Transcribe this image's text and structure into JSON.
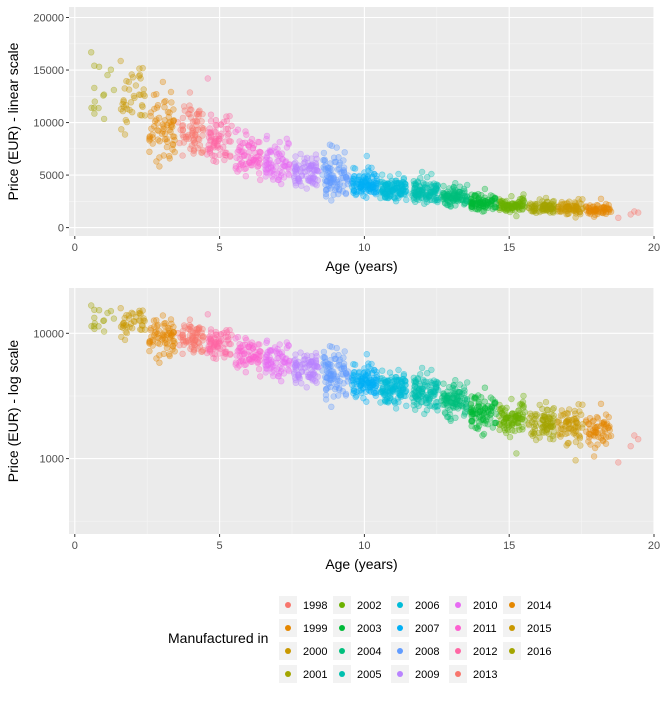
{
  "chart_data": [
    {
      "type": "scatter",
      "xlabel": "Age (years)",
      "ylabel": "Price (EUR) - linear scale",
      "xlim": [
        -0.2,
        20.0
      ],
      "ylim": [
        -800,
        21000
      ],
      "x_ticks": [
        0,
        5,
        10,
        15,
        20
      ],
      "y_ticks": [
        0,
        5000,
        10000,
        15000,
        20000
      ],
      "y_scale": "linear",
      "grid": true
    },
    {
      "type": "scatter",
      "xlabel": "Age (years)",
      "ylabel": "Price (EUR) - log scale",
      "xlim": [
        -0.2,
        20.0
      ],
      "ylim": [
        250,
        23000
      ],
      "x_ticks": [
        0,
        5,
        10,
        15,
        20
      ],
      "y_ticks": [
        1000,
        10000
      ],
      "y_scale": "log",
      "grid": true
    }
  ],
  "series": [
    {
      "name": "1998",
      "color": "#F8766D",
      "age": 19.2,
      "median": 1450,
      "count": 4
    },
    {
      "name": "1999",
      "color": "#E58700",
      "age": 18.1,
      "median": 1700,
      "count": 60
    },
    {
      "name": "2000",
      "color": "#C99800",
      "age": 17.1,
      "median": 1850,
      "count": 70
    },
    {
      "name": "2001",
      "color": "#A3A500",
      "age": 16.1,
      "median": 1950,
      "count": 80
    },
    {
      "name": "2002",
      "color": "#6BB100",
      "age": 15.1,
      "median": 2150,
      "count": 90
    },
    {
      "name": "2003",
      "color": "#00BA38",
      "age": 14.1,
      "median": 2350,
      "count": 90
    },
    {
      "name": "2004",
      "color": "#00BF7D",
      "age": 13.1,
      "median": 2900,
      "count": 100
    },
    {
      "name": "2005",
      "color": "#00C0AF",
      "age": 12.1,
      "median": 3400,
      "count": 110
    },
    {
      "name": "2006",
      "color": "#00BCD8",
      "age": 11.0,
      "median": 3700,
      "count": 120
    },
    {
      "name": "2007",
      "color": "#00B0F6",
      "age": 10.0,
      "median": 4100,
      "count": 110
    },
    {
      "name": "2008",
      "color": "#619CFF",
      "age": 9.0,
      "median": 4800,
      "count": 90
    },
    {
      "name": "2009",
      "color": "#B983FF",
      "age": 8.0,
      "median": 5200,
      "count": 80
    },
    {
      "name": "2010",
      "color": "#E76BF3",
      "age": 7.0,
      "median": 5900,
      "count": 70
    },
    {
      "name": "2011",
      "color": "#FD61D1",
      "age": 6.0,
      "median": 6900,
      "count": 70
    },
    {
      "name": "2012",
      "color": "#FF67A4",
      "age": 5.0,
      "median": 8200,
      "count": 70
    },
    {
      "name": "2013",
      "color": "#F8766D",
      "age": 4.0,
      "median": 9100,
      "count": 70
    },
    {
      "name": "2014",
      "color": "#E58700",
      "age": 3.0,
      "median": 9600,
      "count": 70
    },
    {
      "name": "2015",
      "color": "#C99800",
      "age": 2.0,
      "median": 12200,
      "count": 40
    },
    {
      "name": "2016",
      "color": "#A3A500",
      "age": 1.0,
      "median": 13300,
      "count": 15
    }
  ],
  "legend": {
    "title": "Manufactured in",
    "position": "bottom",
    "columns": [
      [
        {
          "label": "1998",
          "color": "#F8766D"
        },
        {
          "label": "1999",
          "color": "#E58700"
        },
        {
          "label": "2000",
          "color": "#C99800"
        },
        {
          "label": "2001",
          "color": "#A3A500"
        }
      ],
      [
        {
          "label": "2002",
          "color": "#6BB100"
        },
        {
          "label": "2003",
          "color": "#00BA38"
        },
        {
          "label": "2004",
          "color": "#00BF7D"
        },
        {
          "label": "2005",
          "color": "#00C0AF"
        }
      ],
      [
        {
          "label": "2006",
          "color": "#00BCD8"
        },
        {
          "label": "2007",
          "color": "#00B0F6"
        },
        {
          "label": "2008",
          "color": "#619CFF"
        },
        {
          "label": "2009",
          "color": "#B983FF"
        }
      ],
      [
        {
          "label": "2010",
          "color": "#E76BF3"
        },
        {
          "label": "2011",
          "color": "#FD61D1"
        },
        {
          "label": "2012",
          "color": "#FF67A4"
        },
        {
          "label": "2013",
          "color": "#F8766D"
        }
      ],
      [
        {
          "label": "2014",
          "color": "#E58700"
        },
        {
          "label": "2015",
          "color": "#C99800"
        },
        {
          "label": "2016",
          "color": "#A3A500"
        }
      ]
    ]
  }
}
